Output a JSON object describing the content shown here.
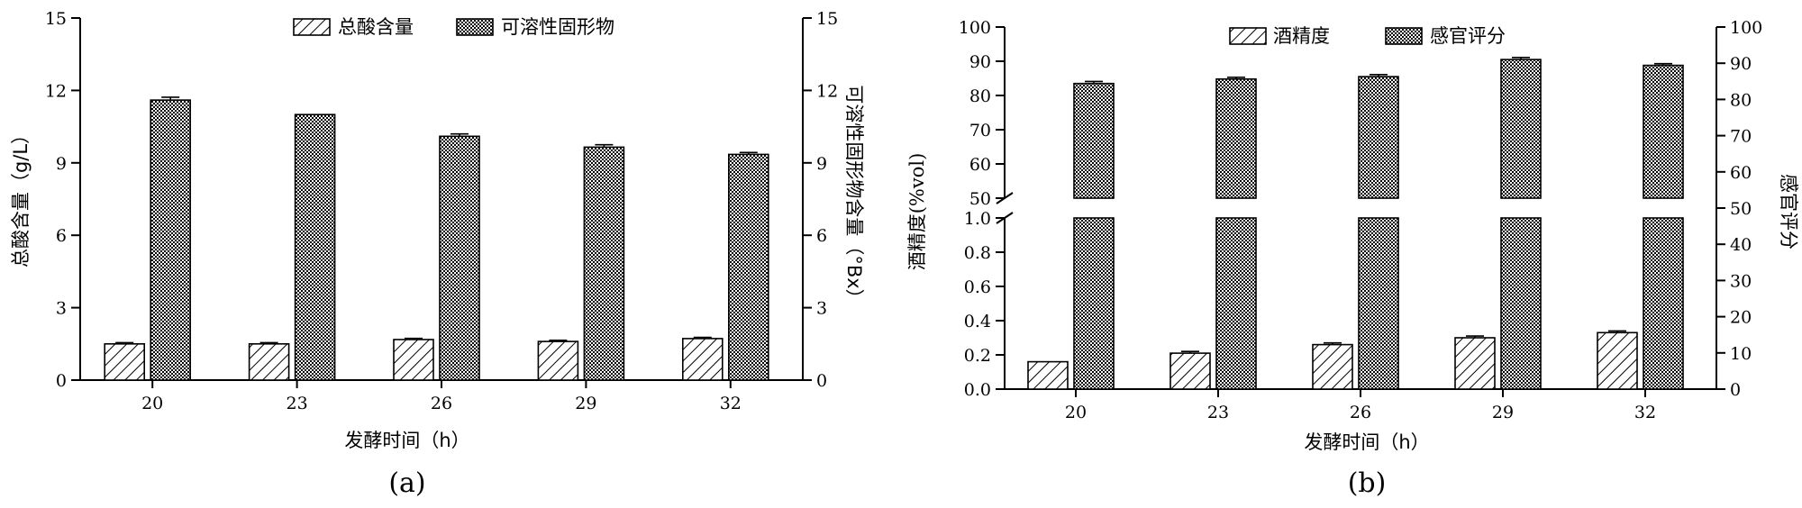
{
  "chart_data": [
    {
      "panel": "(a)",
      "type": "bar",
      "xlabel": "发酵时间（h）",
      "categories": [
        "20",
        "23",
        "26",
        "29",
        "32"
      ],
      "series": [
        {
          "name": "总酸含量",
          "axis": "left",
          "pattern": "hatch",
          "values": [
            1.5,
            1.5,
            1.68,
            1.6,
            1.72
          ],
          "error": [
            0.05,
            0.05,
            0.05,
            0.05,
            0.05
          ]
        },
        {
          "name": "可溶性固形物",
          "axis": "right",
          "pattern": "checker",
          "values": [
            11.6,
            11.0,
            10.1,
            9.65,
            9.35
          ],
          "error": [
            0.12,
            0.0,
            0.1,
            0.1,
            0.08
          ]
        }
      ],
      "ylabel_left": "总酸含量（g/L）",
      "ylabel_right": "可溶性固形物含量（°Bx）",
      "ylim_left": [
        0,
        15
      ],
      "ylim_right": [
        0,
        15
      ],
      "yticks_left": [
        "0",
        "3",
        "6",
        "9",
        "12",
        "15"
      ],
      "yticks_right": [
        "0",
        "3",
        "6",
        "9",
        "12",
        "15"
      ],
      "legend": "top-center",
      "grid": false
    },
    {
      "panel": "(b)",
      "type": "bar",
      "xlabel": "发酵时间（h）",
      "categories": [
        "20",
        "23",
        "26",
        "29",
        "32"
      ],
      "series": [
        {
          "name": "酒精度",
          "axis": "left",
          "pattern": "hatch",
          "values": [
            0.16,
            0.21,
            0.26,
            0.3,
            0.33
          ],
          "error": [
            0.0,
            0.01,
            0.01,
            0.01,
            0.01
          ]
        },
        {
          "name": "感官评分",
          "axis": "right",
          "pattern": "checker",
          "values": [
            83.5,
            84.8,
            85.5,
            90.5,
            88.8
          ],
          "error": [
            0.6,
            0.5,
            0.6,
            0.6,
            0.5
          ]
        }
      ],
      "ylabel_left": "酒精度(%vol)",
      "ylabel_right": "感官评分",
      "ylim_left_broken": [
        [
          0,
          1.0
        ],
        [
          50,
          100
        ]
      ],
      "ylim_right": [
        0,
        100
      ],
      "yticks_left_lower": [
        "0.0",
        "0.2",
        "0.4",
        "0.6",
        "0.8",
        "1.0"
      ],
      "yticks_left_upper": [
        "50",
        "60",
        "70",
        "80",
        "90",
        "100"
      ],
      "yticks_right": [
        "0",
        "10",
        "20",
        "30",
        "40",
        "50",
        "60",
        "70",
        "80",
        "90",
        "100"
      ],
      "legend": "top-center",
      "grid": false
    }
  ]
}
